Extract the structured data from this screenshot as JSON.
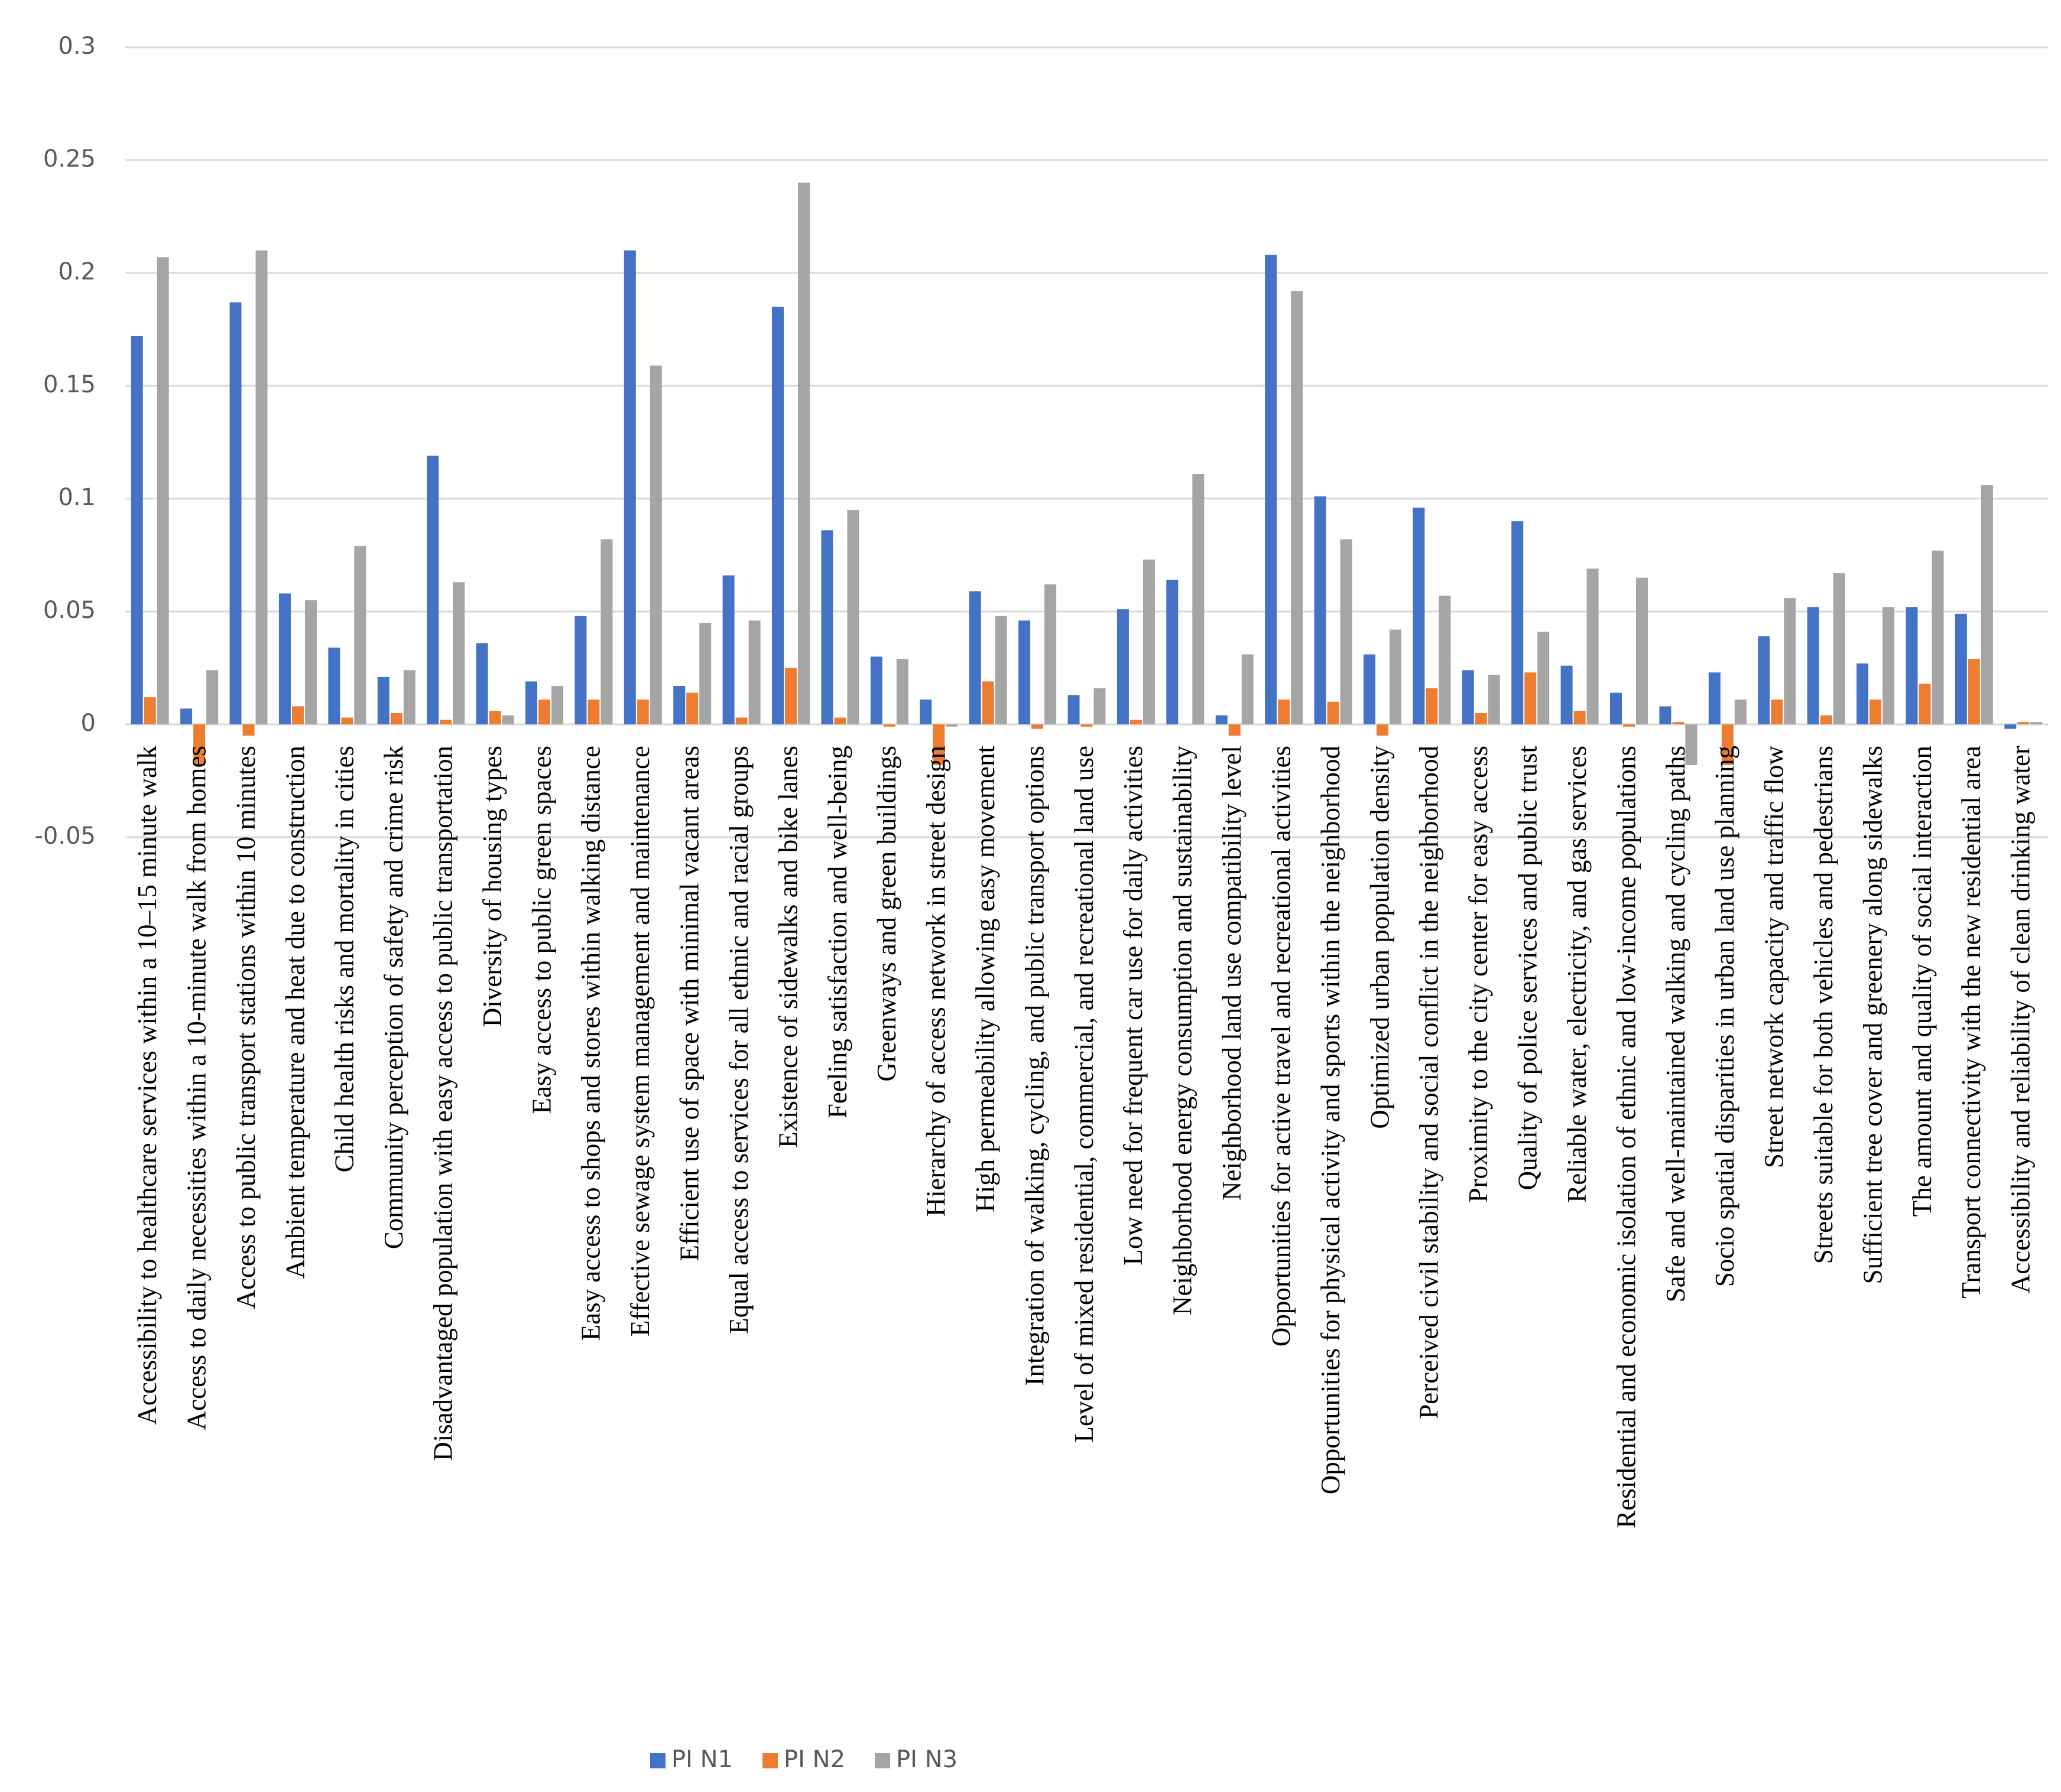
{
  "chart_data": {
    "type": "bar",
    "categories": [
      "Accessibility to healthcare services within a 10–15 minute walk",
      "Access to daily necessities within a 10-minute walk from homes",
      "Access to public transport stations within 10 minutes",
      "Ambient temperature and heat due to construction",
      "Child health risks and mortality in cities",
      "Community perception of safety and crime risk",
      "Disadvantaged population with easy access to public transportation",
      "Diversity of housing types",
      "Easy access to public green spaces",
      "Easy access to shops and stores within walking distance",
      "Effective sewage system management and maintenance",
      "Efficient use of space with minimal vacant areas",
      "Equal access to services for all ethnic and racial groups",
      "Existence of sidewalks and bike lanes",
      "Feeling satisfaction and well-being",
      "Greenways and green buildings",
      "Hierarchy of access network in street design",
      "High permeability allowing easy movement",
      "Integration of walking, cycling, and public transport options",
      "Level of mixed residential, commercial, and recreational land use",
      "Low need for frequent car use for daily activities",
      "Neighborhood energy consumption and sustainability",
      "Neighborhood land use compatibility level",
      "Opportunities for active travel and recreational activities",
      "Opportunities for physical activity and sports within the neighborhood",
      "Optimized urban population density",
      "Perceived civil stability and social conflict in the neighborhood",
      "Proximity to the city center for easy access",
      "Quality of police services and public trust",
      "Reliable water, electricity, and gas services",
      "Residential and economic isolation of ethnic and low-income populations",
      "Safe and well-maintained walking and cycling paths",
      "Socio spatial disparities in urban land use planning",
      "Street network capacity and traffic flow",
      "Streets suitable for both vehicles and pedestrians",
      "Sufficient tree cover and greenery along sidewalks",
      "The amount and quality of social interaction",
      "Transport connectivity with the new residential area",
      "Accessibility and reliability of clean drinking water"
    ],
    "series": [
      {
        "name": "PI N1",
        "color": "#4472c4",
        "values": [
          0.172,
          0.007,
          0.187,
          0.058,
          0.034,
          0.021,
          0.119,
          0.036,
          0.019,
          0.048,
          0.21,
          0.017,
          0.066,
          0.185,
          0.086,
          0.03,
          0.011,
          0.059,
          0.046,
          0.013,
          0.051,
          0.064,
          0.004,
          0.208,
          0.101,
          0.031,
          0.096,
          0.024,
          0.09,
          0.026,
          0.014,
          0.008,
          0.023,
          0.039,
          0.052,
          0.027,
          0.052,
          0.049,
          -0.002
        ]
      },
      {
        "name": "PI N2",
        "color": "#ed7d31",
        "values": [
          0.012,
          -0.018,
          -0.005,
          0.008,
          0.003,
          0.005,
          0.002,
          0.006,
          0.011,
          0.011,
          0.011,
          0.014,
          0.003,
          0.025,
          0.003,
          -0.001,
          -0.018,
          0.019,
          -0.002,
          -0.001,
          0.002,
          0.0,
          -0.005,
          0.011,
          0.01,
          -0.005,
          0.016,
          0.005,
          0.023,
          0.006,
          -0.001,
          0.001,
          -0.018,
          0.011,
          0.004,
          0.011,
          0.018,
          0.029,
          0.001
        ]
      },
      {
        "name": "PI N3",
        "color": "#a5a5a5",
        "values": [
          0.207,
          0.024,
          0.21,
          0.055,
          0.079,
          0.024,
          0.063,
          0.004,
          0.017,
          0.082,
          0.159,
          0.045,
          0.046,
          0.24,
          0.095,
          0.029,
          -0.001,
          0.048,
          0.062,
          0.016,
          0.073,
          0.111,
          0.031,
          0.192,
          0.082,
          0.042,
          0.057,
          0.022,
          0.041,
          0.069,
          0.065,
          -0.018,
          0.011,
          0.056,
          0.067,
          0.052,
          0.077,
          0.106,
          0.001
        ]
      }
    ],
    "ylim": [
      -0.05,
      0.3
    ],
    "yticks": [
      -0.05,
      0,
      0.05,
      0.1,
      0.15,
      0.2,
      0.25,
      0.3
    ],
    "grid": true
  }
}
